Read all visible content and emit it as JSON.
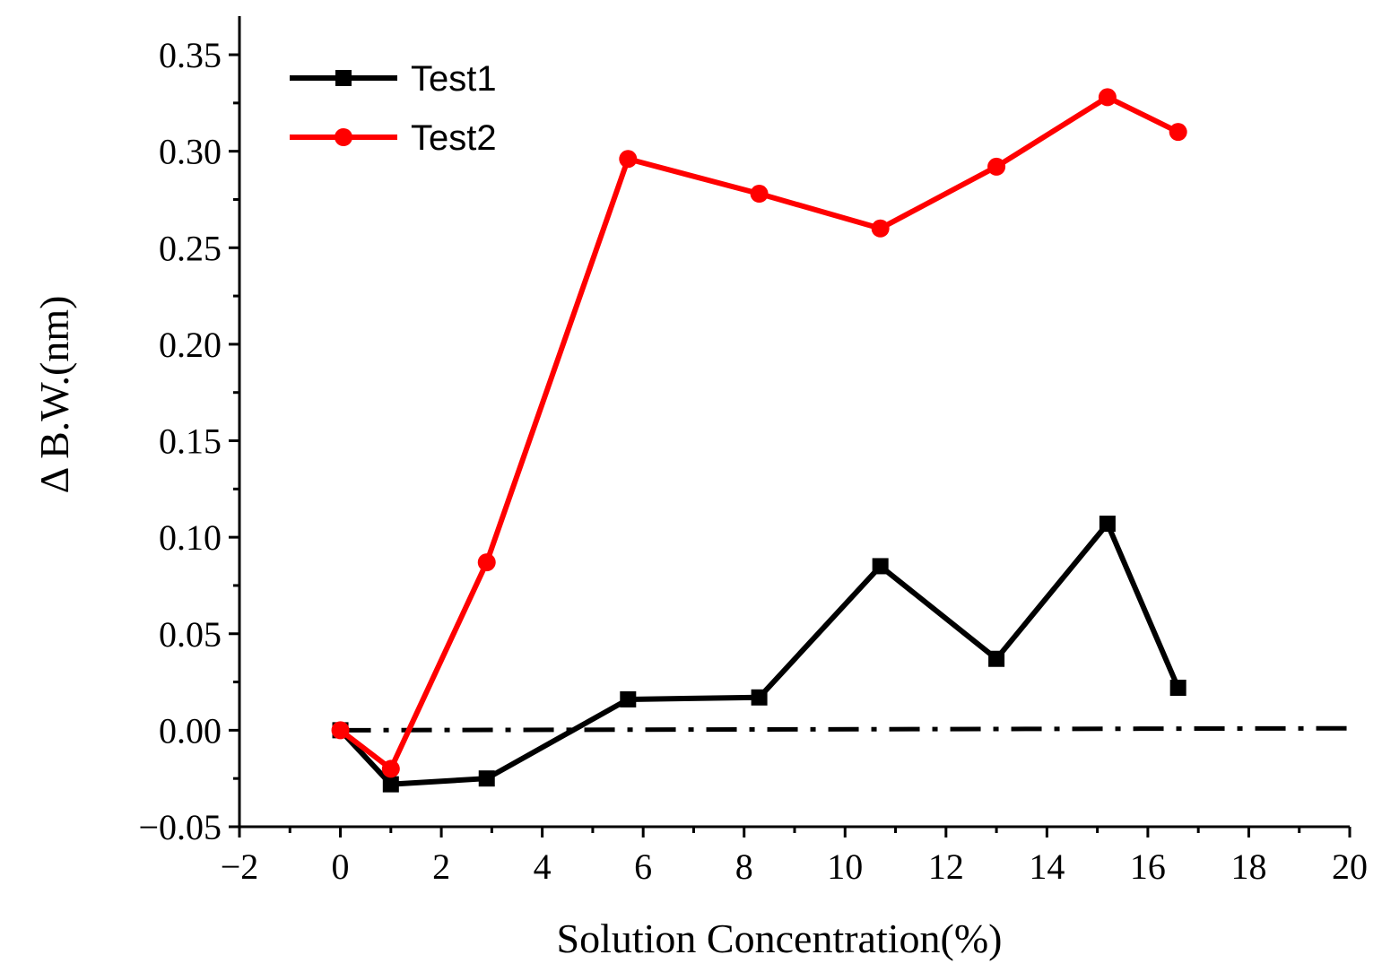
{
  "chart_data": {
    "type": "line",
    "xlabel": "Solution Concentration(%)",
    "ylabel": "Δ B.W.(nm)",
    "xlim": [
      -2,
      20
    ],
    "ylim": [
      -0.05,
      0.37
    ],
    "x_ticks": [
      -2,
      0,
      2,
      4,
      6,
      8,
      10,
      12,
      14,
      16,
      18,
      20
    ],
    "x_tick_labels": [
      "−2",
      "0",
      "2",
      "4",
      "6",
      "8",
      "10",
      "12",
      "14",
      "16",
      "18",
      "20"
    ],
    "y_ticks": [
      -0.05,
      0.0,
      0.05,
      0.1,
      0.15,
      0.2,
      0.25,
      0.3,
      0.35
    ],
    "y_tick_labels": [
      "−0.05",
      "0.00",
      "0.05",
      "0.10",
      "0.15",
      "0.20",
      "0.25",
      "0.30",
      "0.35"
    ],
    "grid": false,
    "legend_position": "top-left",
    "series": [
      {
        "name": "Test1",
        "color": "#000000",
        "marker": "square",
        "x": [
          0,
          1.0,
          2.9,
          5.7,
          8.3,
          10.7,
          13.0,
          15.2,
          16.6
        ],
        "y": [
          0.0,
          -0.028,
          -0.025,
          0.016,
          0.017,
          0.085,
          0.037,
          0.107,
          0.022
        ]
      },
      {
        "name": "Test2",
        "color": "#ff0000",
        "marker": "circle",
        "x": [
          0,
          1.0,
          2.9,
          5.7,
          8.3,
          10.7,
          13.0,
          15.2,
          16.6
        ],
        "y": [
          0.0,
          -0.02,
          0.087,
          0.296,
          0.278,
          0.26,
          0.292,
          0.328,
          0.31
        ]
      }
    ],
    "reference_line": {
      "style": "dash-dot",
      "color": "#000000",
      "x": [
        0,
        20
      ],
      "y": [
        0.0,
        0.001
      ]
    }
  }
}
